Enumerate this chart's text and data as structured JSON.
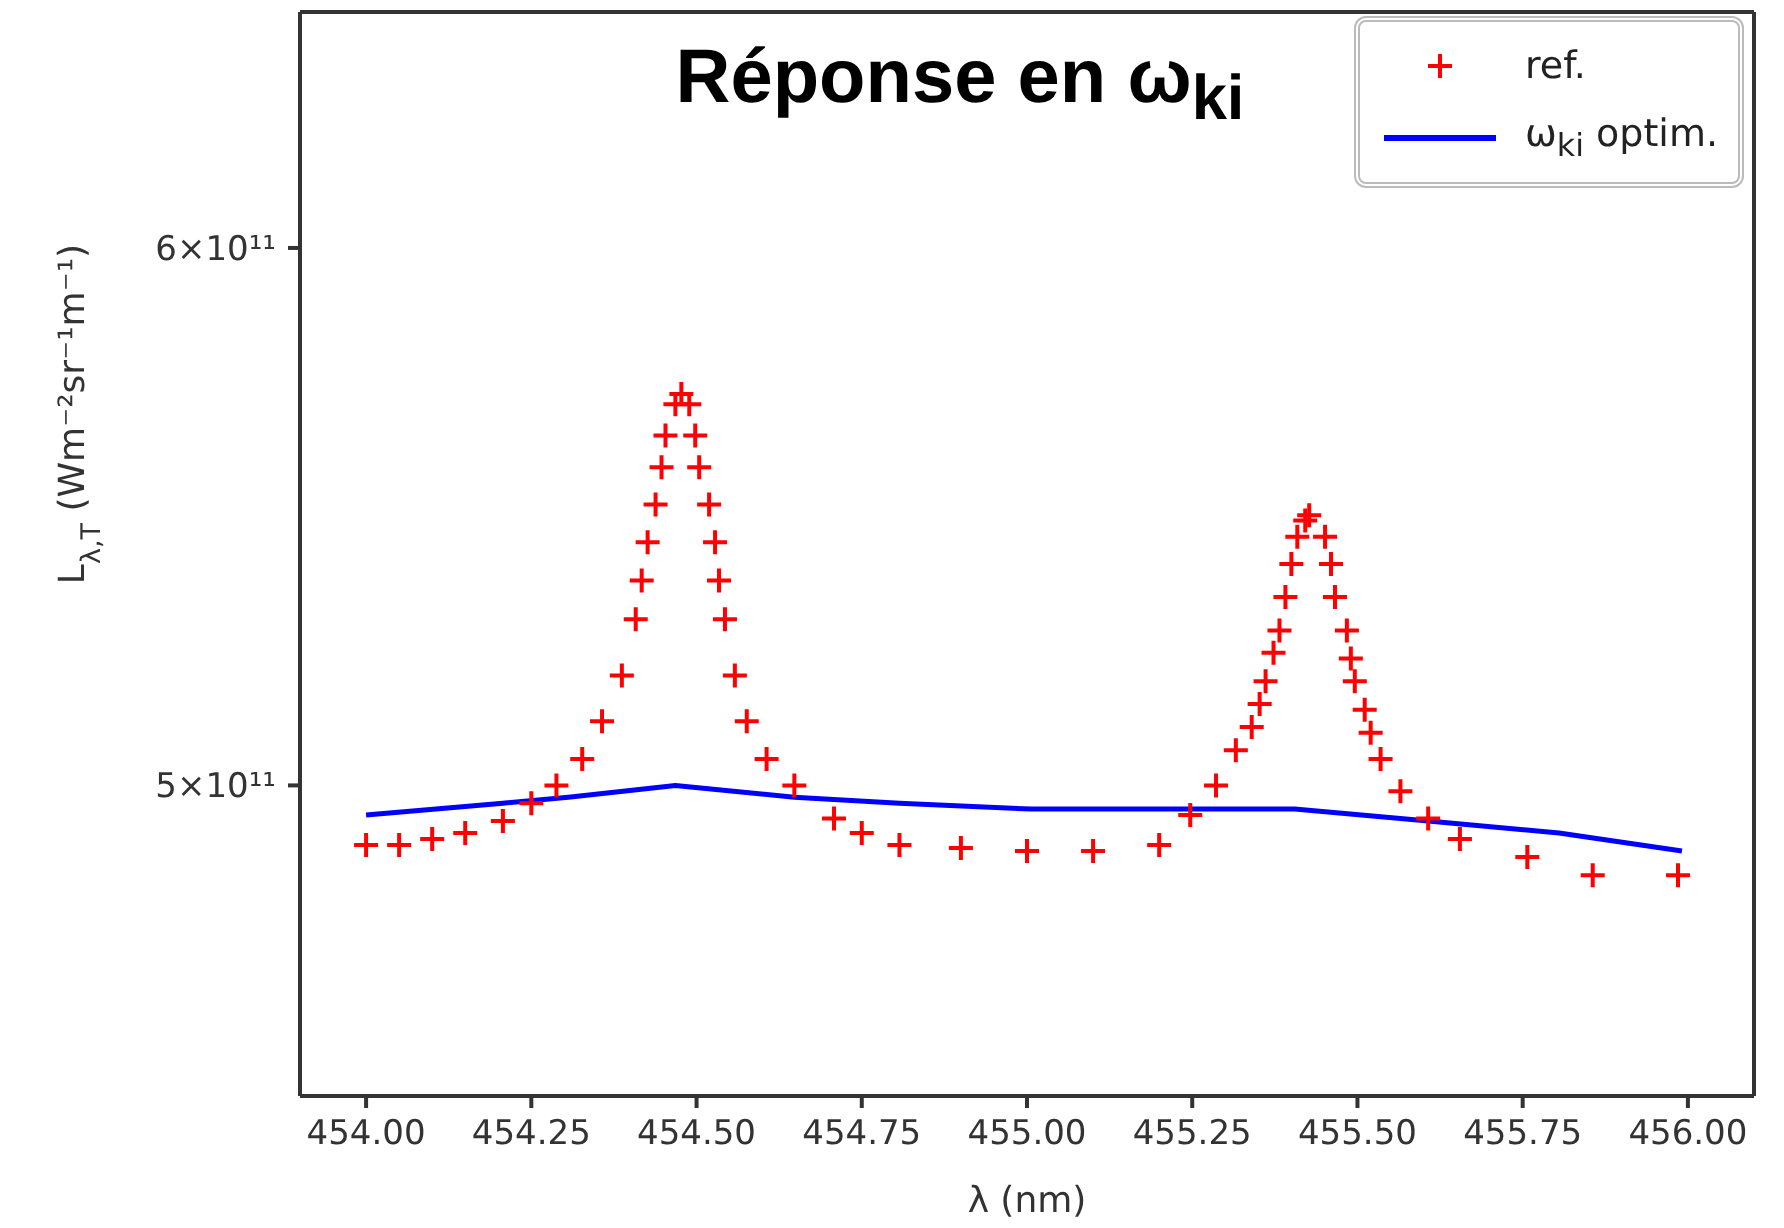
{
  "chart_data": {
    "type": "scatter",
    "title": "Réponse en ω$_{ki}$",
    "xlabel": "λ (nm)",
    "ylabel": "L$_{λ,T}$ (Wm⁻²sr⁻¹m⁻¹)",
    "log": "y",
    "legend": "top right",
    "xlim": [
      453.9,
      456.1
    ],
    "xticks": [
      {
        "value": 454,
        "label": "454.00"
      },
      {
        "value": 454.25,
        "label": "454.25"
      },
      {
        "value": 454.5,
        "label": "454.50"
      },
      {
        "value": 454.75,
        "label": "454.75"
      },
      {
        "value": 455,
        "label": "455.00"
      },
      {
        "value": 455.25,
        "label": "455.25"
      },
      {
        "value": 455.5,
        "label": "455.50"
      },
      {
        "value": 455.75,
        "label": "455.75"
      },
      {
        "value": 456,
        "label": "456.00"
      }
    ],
    "ylim": [
      450000000000.0,
      650000000000.0
    ],
    "yticks": [
      {
        "value": 500000000000.0,
        "label": "5×10¹¹"
      },
      {
        "value": 600000000000.0,
        "label": "6×10¹¹"
      }
    ],
    "series": [
      {
        "name": "ref.",
        "marker": "cross",
        "color": "#ff0000",
        "x": [
          454.0,
          454.05,
          454.1,
          454.15,
          454.207,
          454.25,
          454.288,
          454.327,
          454.357,
          454.387,
          454.408,
          454.417,
          454.426,
          454.438,
          454.447,
          454.453,
          454.468,
          454.477,
          454.489,
          454.498,
          454.504,
          454.519,
          454.528,
          454.534,
          454.543,
          454.558,
          454.576,
          454.606,
          454.648,
          454.708,
          454.75,
          454.807,
          454.9,
          455.0,
          455.1,
          455.2,
          455.247,
          455.286,
          455.316,
          455.34,
          455.352,
          455.361,
          455.373,
          455.382,
          455.391,
          455.4,
          455.409,
          455.421,
          455.427,
          455.451,
          455.46,
          455.466,
          455.484,
          455.49,
          455.496,
          455.511,
          455.52,
          455.535,
          455.565,
          455.607,
          455.655,
          455.757,
          455.856,
          455.985
        ],
        "values": [
          490000000000.0,
          490000000000.0,
          491000000000.0,
          492000000000.0,
          494000000000.0,
          497000000000.0,
          500000000000.0,
          504500000000.0,
          511000000000.0,
          519000000000.0,
          529000000000.0,
          536000000000.0,
          543000000000.0,
          550000000000.0,
          557000000000.0,
          563000000000.0,
          569000000000.0,
          571000000000.0,
          569000000000.0,
          563000000000.0,
          557000000000.0,
          550000000000.0,
          543000000000.0,
          536000000000.0,
          529000000000.0,
          519000000000.0,
          511000000000.0,
          504500000000.0,
          500000000000.0,
          494400000000.0,
          492000000000.0,
          490000000000.0,
          489500000000.0,
          489000000000.0,
          489000000000.0,
          490000000000.0,
          495000000000.0,
          500000000000.0,
          506000000000.0,
          510000000000.0,
          514000000000.0,
          518000000000.0,
          523000000000.0,
          527000000000.0,
          533000000000.0,
          539000000000.0,
          544000000000.0,
          547000000000.0,
          548000000000.0,
          544000000000.0,
          539000000000.0,
          533000000000.0,
          527000000000.0,
          522000000000.0,
          518000000000.0,
          513000000000.0,
          509000000000.0,
          504500000000.0,
          499000000000.0,
          494400000000.0,
          491000000000.0,
          488000000000.0,
          485000000000.0,
          485000000000.0
        ]
      },
      {
        "name": "ω$_{ki}$ optim.",
        "type": "line",
        "marker": "none",
        "line_style": "solid",
        "color": "#0000ff",
        "x": [
          454.0,
          454.207,
          454.306,
          454.468,
          454.648,
          454.807,
          454.807,
          455.006,
          455.405,
          455.607,
          455.805,
          455.991
        ],
        "values": [
          495000000000.0,
          497000000000.0,
          498000000000.0,
          500000000000.0,
          498000000000.0,
          497000000000.0,
          497000000000.0,
          496000000000.0,
          496000000000.0,
          494000000000.0,
          492000000000.0,
          489000000000.0
        ]
      }
    ]
  }
}
